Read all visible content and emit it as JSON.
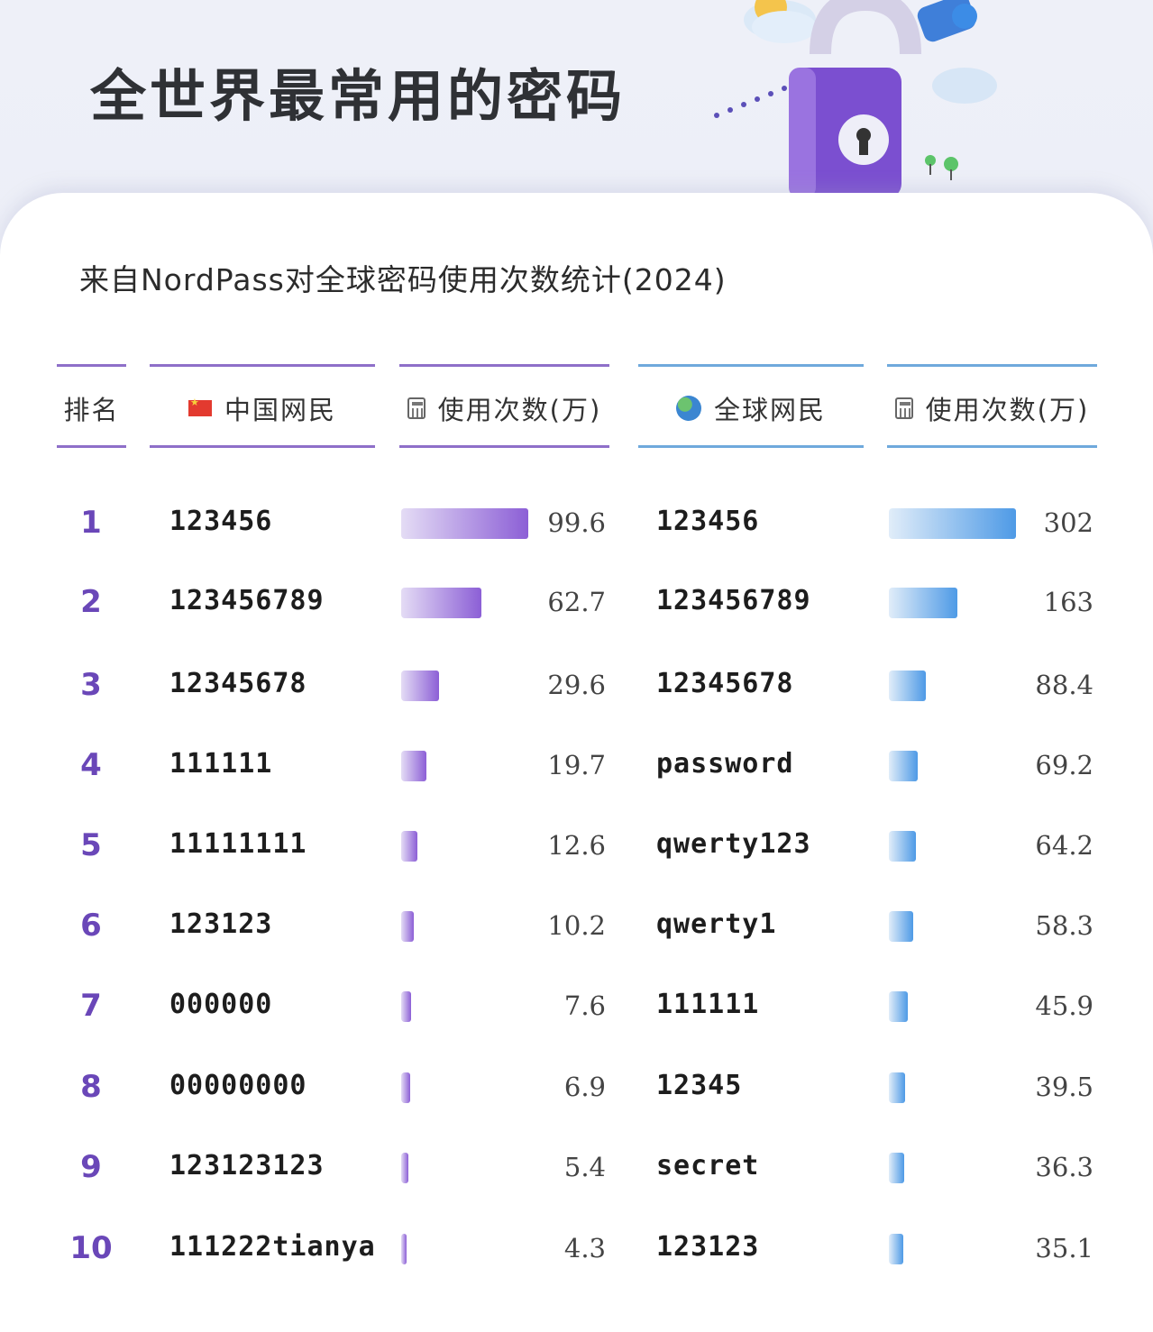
{
  "title": "全世界最常用的密码",
  "subtitle": "来自NordPass对全球密码使用次数统计(2024)",
  "headers": {
    "rank": "排名",
    "china": "中国网民",
    "china_count": "使用次数(万)",
    "global": "全球网民",
    "global_count": "使用次数(万)"
  },
  "colors": {
    "china_accent": "#8c5fd6",
    "global_accent": "#4e9ae6",
    "rank_color": "#6a47b8"
  },
  "icons": {
    "china": "china-flag-icon",
    "global": "globe-icon",
    "count": "calculator-icon"
  },
  "chart_data": {
    "type": "table",
    "ranks": [
      "1",
      "2",
      "3",
      "4",
      "5",
      "6",
      "7",
      "8",
      "9",
      "10"
    ],
    "series": [
      {
        "name": "中国网民",
        "passwords": [
          "123456",
          "123456789",
          "12345678",
          "111111",
          "11111111",
          "123123",
          "000000",
          "00000000",
          "123123123",
          "111222tianya"
        ],
        "values": [
          99.6,
          62.7,
          29.6,
          19.7,
          12.6,
          10.2,
          7.6,
          6.9,
          5.4,
          4.3
        ],
        "value_labels": [
          "99.6",
          "62.7",
          "29.6",
          "19.7",
          "12.6",
          "10.2",
          "7.6",
          "6.9",
          "5.4",
          "4.3"
        ],
        "max": 99.6
      },
      {
        "name": "全球网民",
        "passwords": [
          "123456",
          "123456789",
          "12345678",
          "password",
          "qwerty123",
          "qwerty1",
          "111111",
          "12345",
          "secret",
          "123123"
        ],
        "values": [
          302,
          163,
          88.4,
          69.2,
          64.2,
          58.3,
          45.9,
          39.5,
          36.3,
          35.1
        ],
        "value_labels": [
          "302",
          "163",
          "88.4",
          "69.2",
          "64.2",
          "58.3",
          "45.9",
          "39.5",
          "36.3",
          "35.1"
        ],
        "max": 302
      }
    ]
  }
}
